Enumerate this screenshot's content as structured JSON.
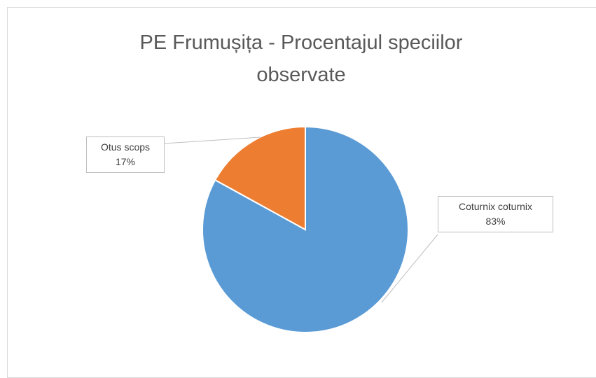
{
  "chart_data": {
    "type": "pie",
    "title": "PE Frumușița - Procentajul speciilor observate",
    "categories": [
      "Coturnix coturnix",
      "Otus scops"
    ],
    "values": [
      83,
      17
    ],
    "value_labels": [
      "83%",
      "17%"
    ],
    "colors": [
      "#5b9bd5",
      "#ed7d31"
    ]
  }
}
